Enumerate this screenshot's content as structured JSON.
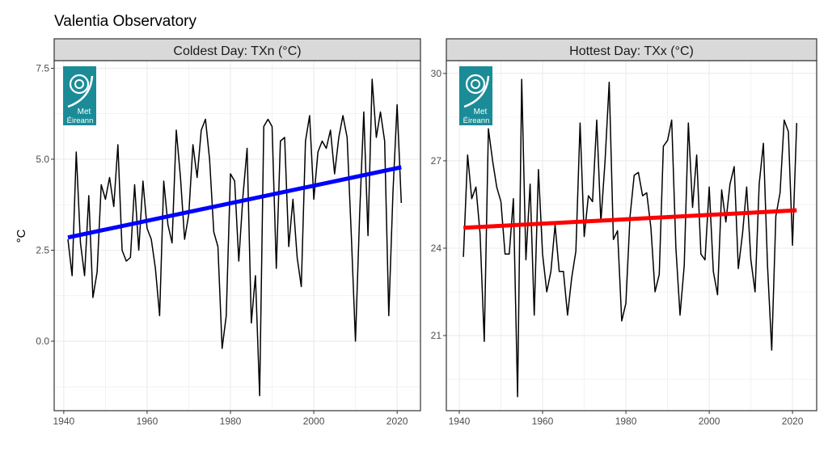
{
  "title": "Valentia Observatory",
  "logo_text": [
    "Met",
    "Éireann"
  ],
  "colors": {
    "logo": "#1b8c97",
    "strip": "#d9d9d9",
    "line": "#000000"
  },
  "chart_data": [
    {
      "type": "line",
      "title": "Coldest Day: TXn (°C)",
      "ylabel": "°C",
      "xlabel": "",
      "xlim": [
        1937.7,
        2025.6
      ],
      "ylim": [
        -1.91,
        7.71
      ],
      "xticks": [
        1940,
        1960,
        1980,
        2000,
        2020
      ],
      "yticks": [
        0.0,
        2.5,
        5.0,
        7.5
      ],
      "ytick_labels": [
        "0.0",
        "2.5",
        "5.0",
        "7.5"
      ],
      "grid": true,
      "trend_color": "#0000ff",
      "trend": {
        "x": [
          1941,
          2021
        ],
        "y": [
          2.85,
          4.78
        ]
      },
      "x_start": 1941,
      "values": [
        2.8,
        1.8,
        5.2,
        2.7,
        1.8,
        4.0,
        1.2,
        1.9,
        4.3,
        3.9,
        4.5,
        3.7,
        5.4,
        2.5,
        2.2,
        2.3,
        4.3,
        2.5,
        4.4,
        3.1,
        2.8,
        2.0,
        0.7,
        4.4,
        3.2,
        2.7,
        5.8,
        4.5,
        2.8,
        3.5,
        5.4,
        4.5,
        5.8,
        6.1,
        5.0,
        3.0,
        2.6,
        -0.2,
        0.7,
        4.6,
        4.4,
        2.2,
        4.0,
        5.3,
        0.5,
        1.8,
        -1.5,
        5.9,
        6.1,
        5.9,
        2.0,
        5.5,
        5.6,
        2.6,
        3.9,
        2.3,
        1.5,
        5.5,
        6.2,
        3.9,
        5.2,
        5.5,
        5.3,
        5.8,
        4.6,
        5.6,
        6.2,
        5.6,
        2.9,
        0.0,
        3.5,
        6.3,
        2.9,
        7.2,
        5.6,
        6.3,
        5.5,
        0.7,
        4.1,
        6.5,
        3.8
      ]
    },
    {
      "type": "line",
      "title": "Hottest Day: TXx (°C)",
      "ylabel": "",
      "xlabel": "",
      "xlim": [
        1936.9,
        2025.8
      ],
      "ylim": [
        18.42,
        30.44
      ],
      "xticks": [
        1940,
        1960,
        1980,
        2000,
        2020
      ],
      "yticks": [
        21,
        24,
        27,
        30
      ],
      "ytick_labels": [
        "21",
        "24",
        "27",
        "30"
      ],
      "grid": true,
      "trend_color": "#ff0000",
      "trend": {
        "x": [
          1941,
          2021
        ],
        "y": [
          24.7,
          25.3
        ]
      },
      "x_start": 1941,
      "values": [
        23.7,
        27.2,
        25.7,
        26.1,
        24.5,
        20.8,
        28.1,
        27.0,
        26.1,
        25.6,
        23.8,
        23.8,
        25.7,
        18.9,
        29.8,
        23.6,
        26.2,
        21.7,
        26.7,
        23.8,
        22.5,
        23.2,
        24.8,
        23.2,
        23.2,
        21.7,
        23.0,
        23.9,
        28.3,
        24.4,
        25.8,
        25.6,
        28.4,
        24.9,
        27.0,
        29.7,
        24.3,
        24.6,
        21.5,
        22.1,
        25.1,
        26.5,
        26.6,
        25.8,
        25.9,
        24.7,
        22.5,
        23.1,
        27.5,
        27.7,
        28.4,
        24.0,
        21.7,
        23.4,
        28.3,
        25.4,
        27.2,
        23.8,
        23.6,
        26.1,
        23.2,
        22.4,
        26.0,
        24.9,
        26.2,
        26.8,
        23.3,
        24.5,
        26.1,
        23.6,
        22.5,
        26.2,
        27.6,
        23.4,
        20.5,
        25.1,
        25.9,
        28.4,
        28.0,
        24.1,
        28.3
      ]
    }
  ]
}
